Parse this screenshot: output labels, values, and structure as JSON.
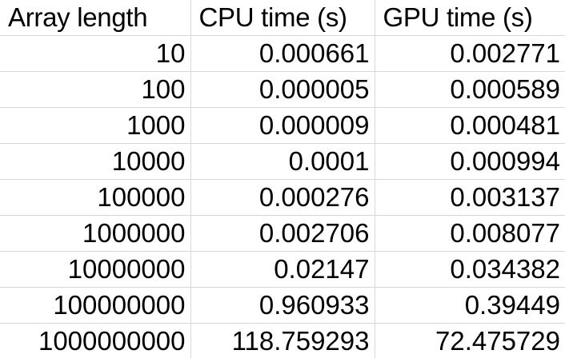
{
  "table": {
    "headers": [
      "Array length",
      "CPU time (s)",
      "GPU time (s)"
    ],
    "rows": [
      [
        "10",
        "0.000661",
        "0.002771"
      ],
      [
        "100",
        "0.000005",
        "0.000589"
      ],
      [
        "1000",
        "0.000009",
        "0.000481"
      ],
      [
        "10000",
        "0.0001",
        "0.000994"
      ],
      [
        "100000",
        "0.000276",
        "0.003137"
      ],
      [
        "1000000",
        "0.002706",
        "0.008077"
      ],
      [
        "10000000",
        "0.02147",
        "0.034382"
      ],
      [
        "100000000",
        "0.960933",
        "0.39449"
      ],
      [
        "1000000000",
        "118.759293",
        "72.475729"
      ]
    ]
  }
}
